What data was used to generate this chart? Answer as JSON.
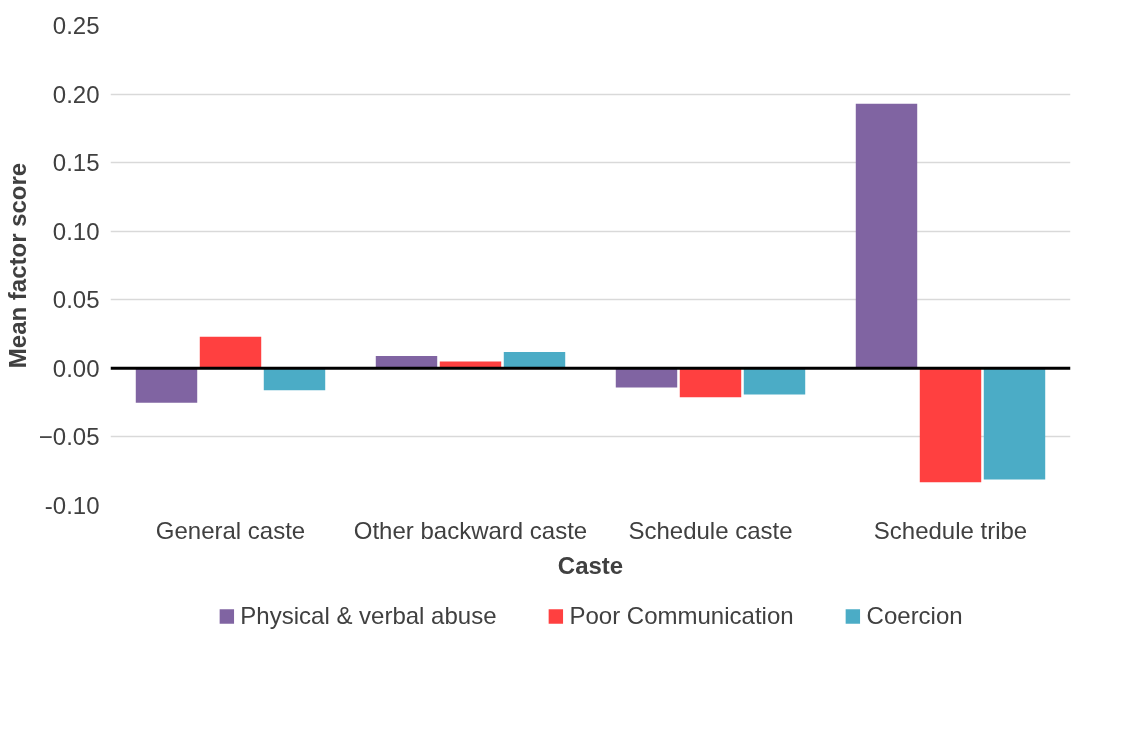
{
  "chart_data": {
    "type": "bar",
    "xlabel": "Caste",
    "ylabel": "Mean factor score",
    "categories": [
      "General caste",
      "Other backward caste",
      "Schedule caste",
      "Schedule tribe"
    ],
    "series": [
      {
        "name": "Physical & verbal abuse",
        "color": "#8064a2",
        "values": [
          -0.025,
          0.009,
          -0.014,
          0.193
        ]
      },
      {
        "name": "Poor Communication",
        "color": "#ff4040",
        "values": [
          0.023,
          0.005,
          -0.021,
          -0.083
        ]
      },
      {
        "name": "Coercion",
        "color": "#4bacc6",
        "values": [
          -0.016,
          0.012,
          -0.019,
          -0.081
        ]
      }
    ],
    "ylim": [
      -0.1,
      0.25
    ],
    "yticks": [
      {
        "value": -0.1,
        "label": "-0.10"
      },
      -0.05,
      {
        "value": 0,
        "label": "0.00"
      },
      0.05,
      {
        "value": 0.1,
        "label": "0.10"
      },
      0.15,
      {
        "value": 0.2,
        "label": "0.20"
      },
      0.25
    ],
    "ref_lines": [
      {
        "axis": "y",
        "value": 0,
        "color": "#000000"
      }
    ],
    "grid": "y",
    "legend": "bottom"
  }
}
